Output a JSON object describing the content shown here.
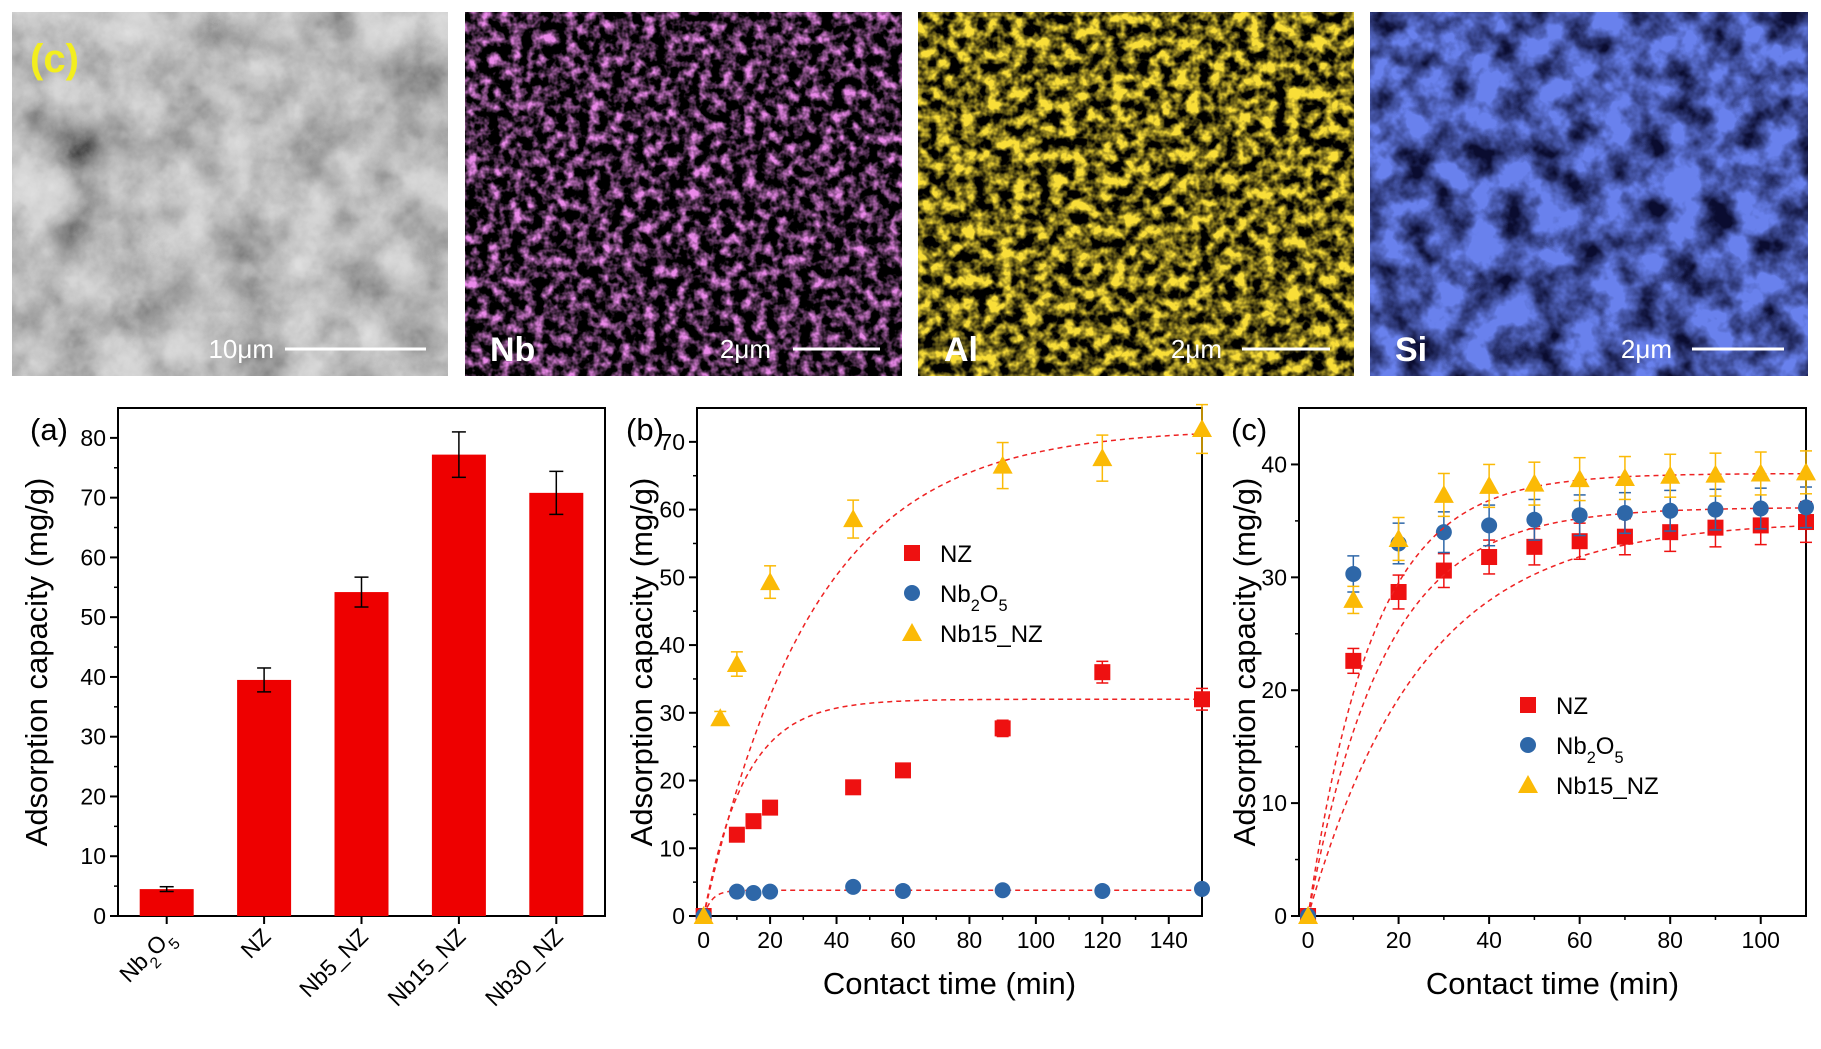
{
  "micrographs": [
    {
      "kind": "sem",
      "element": "",
      "scale": "10μm",
      "corner_label": "(c)"
    },
    {
      "kind": "map",
      "element": "Nb",
      "scale": "2μm",
      "corner_label": "",
      "color": "#d43fd0"
    },
    {
      "kind": "map",
      "element": "Al",
      "scale": "2μm",
      "corner_label": "",
      "color": "#f2b90a"
    },
    {
      "kind": "map",
      "element": "Si",
      "scale": "2μm",
      "corner_label": "",
      "color": "#2438d8"
    }
  ],
  "chart_data": [
    {
      "type": "bar",
      "panel_label": "(a)",
      "ylabel": "Adsorption capacity (mg/g)",
      "ylim": [
        0,
        85
      ],
      "yticks": [
        0,
        10,
        20,
        30,
        40,
        50,
        60,
        70,
        80
      ],
      "categories": [
        "Nb2O5",
        "NZ",
        "Nb5_NZ",
        "Nb15_NZ",
        "Nb30_NZ"
      ],
      "values": [
        4.5,
        39.5,
        54.2,
        77.2,
        70.8
      ],
      "errors": [
        0.4,
        2.0,
        2.5,
        3.8,
        3.6
      ],
      "bar_color": "#ee0000"
    },
    {
      "type": "scatter",
      "panel_label": "(b)",
      "xlabel": "Contact time (min)",
      "ylabel": "Adsorption capacity (mg/g)",
      "xlim": [
        -2,
        150
      ],
      "ylim": [
        0,
        75
      ],
      "xticks": [
        0,
        20,
        40,
        60,
        80,
        100,
        120,
        140
      ],
      "yticks": [
        0,
        10,
        20,
        30,
        40,
        50,
        60,
        70
      ],
      "legend_position": "center",
      "series": [
        {
          "name": "NZ",
          "marker": "square",
          "color": "#ee1111",
          "x": [
            0,
            10,
            15,
            20,
            45,
            60,
            90,
            120,
            150
          ],
          "y": [
            0,
            12,
            14,
            16,
            19,
            21.5,
            27.7,
            36,
            32
          ],
          "err": [
            0,
            0,
            0,
            0.6,
            0.6,
            1.0,
            1.2,
            1.6,
            1.6
          ],
          "fit_qe": 32,
          "fit_k": 0.08
        },
        {
          "name": "Nb2O5",
          "marker": "circle",
          "color": "#2e67a8",
          "x": [
            0,
            10,
            15,
            20,
            45,
            60,
            90,
            120,
            150
          ],
          "y": [
            0,
            3.6,
            3.4,
            3.6,
            4.3,
            3.7,
            3.8,
            3.7,
            4.0
          ],
          "err": [
            0,
            0,
            0,
            0,
            0,
            0,
            0,
            0,
            0
          ],
          "fit_qe": 3.8,
          "fit_k": 0.4
        },
        {
          "name": "Nb15_NZ",
          "marker": "triangle",
          "color": "#fbba06",
          "x": [
            0,
            5,
            10,
            20,
            45,
            90,
            120,
            150
          ],
          "y": [
            0,
            29.2,
            37.2,
            49.3,
            58.6,
            66.5,
            67.6,
            71.9
          ],
          "err": [
            0,
            1.0,
            1.8,
            2.4,
            2.8,
            3.4,
            3.4,
            3.6
          ],
          "fit_qe": 72,
          "fit_k": 0.03
        }
      ]
    },
    {
      "type": "scatter",
      "panel_label": "(c)",
      "xlabel": "Contact time (min)",
      "ylabel": "Adsorption capacity (mg/g)",
      "xlim": [
        -2,
        110
      ],
      "ylim": [
        0,
        45
      ],
      "xticks": [
        0,
        20,
        40,
        60,
        80,
        100
      ],
      "yticks": [
        0,
        10,
        20,
        30,
        40
      ],
      "legend_position": "center",
      "series": [
        {
          "name": "NZ",
          "marker": "square",
          "color": "#ee1111",
          "x": [
            0,
            10,
            20,
            30,
            40,
            50,
            60,
            70,
            80,
            90,
            100,
            110
          ],
          "y": [
            0,
            22.6,
            28.7,
            30.6,
            31.8,
            32.7,
            33.2,
            33.6,
            34.0,
            34.4,
            34.6,
            34.9
          ],
          "err": [
            0,
            1.1,
            1.5,
            1.5,
            1.5,
            1.6,
            1.6,
            1.6,
            1.7,
            1.7,
            1.7,
            1.8
          ],
          "fit_qe": 35,
          "fit_k": 0.04
        },
        {
          "name": "Nb2O5",
          "marker": "circle",
          "color": "#2e67a8",
          "x": [
            0,
            10,
            20,
            30,
            40,
            50,
            60,
            70,
            80,
            90,
            100,
            110
          ],
          "y": [
            0,
            30.3,
            33.0,
            34.0,
            34.6,
            35.1,
            35.5,
            35.7,
            35.9,
            36.0,
            36.1,
            36.2
          ],
          "err": [
            0,
            1.6,
            1.8,
            1.8,
            1.8,
            1.8,
            1.8,
            1.8,
            1.8,
            1.8,
            1.8,
            1.8
          ],
          "fit_qe": 36.2,
          "fit_k": 0.06
        },
        {
          "name": "Nb15_NZ",
          "marker": "triangle",
          "color": "#fbba06",
          "x": [
            0,
            10,
            20,
            30,
            40,
            50,
            60,
            70,
            80,
            90,
            100,
            110
          ],
          "y": [
            0,
            28.0,
            33.4,
            37.3,
            38.1,
            38.3,
            38.7,
            38.8,
            39.0,
            39.1,
            39.2,
            39.3
          ],
          "err": [
            0,
            1.2,
            1.9,
            1.9,
            1.9,
            1.9,
            1.9,
            1.9,
            1.9,
            1.9,
            1.9,
            1.9
          ],
          "fit_qe": 39.2,
          "fit_k": 0.07
        }
      ]
    }
  ]
}
